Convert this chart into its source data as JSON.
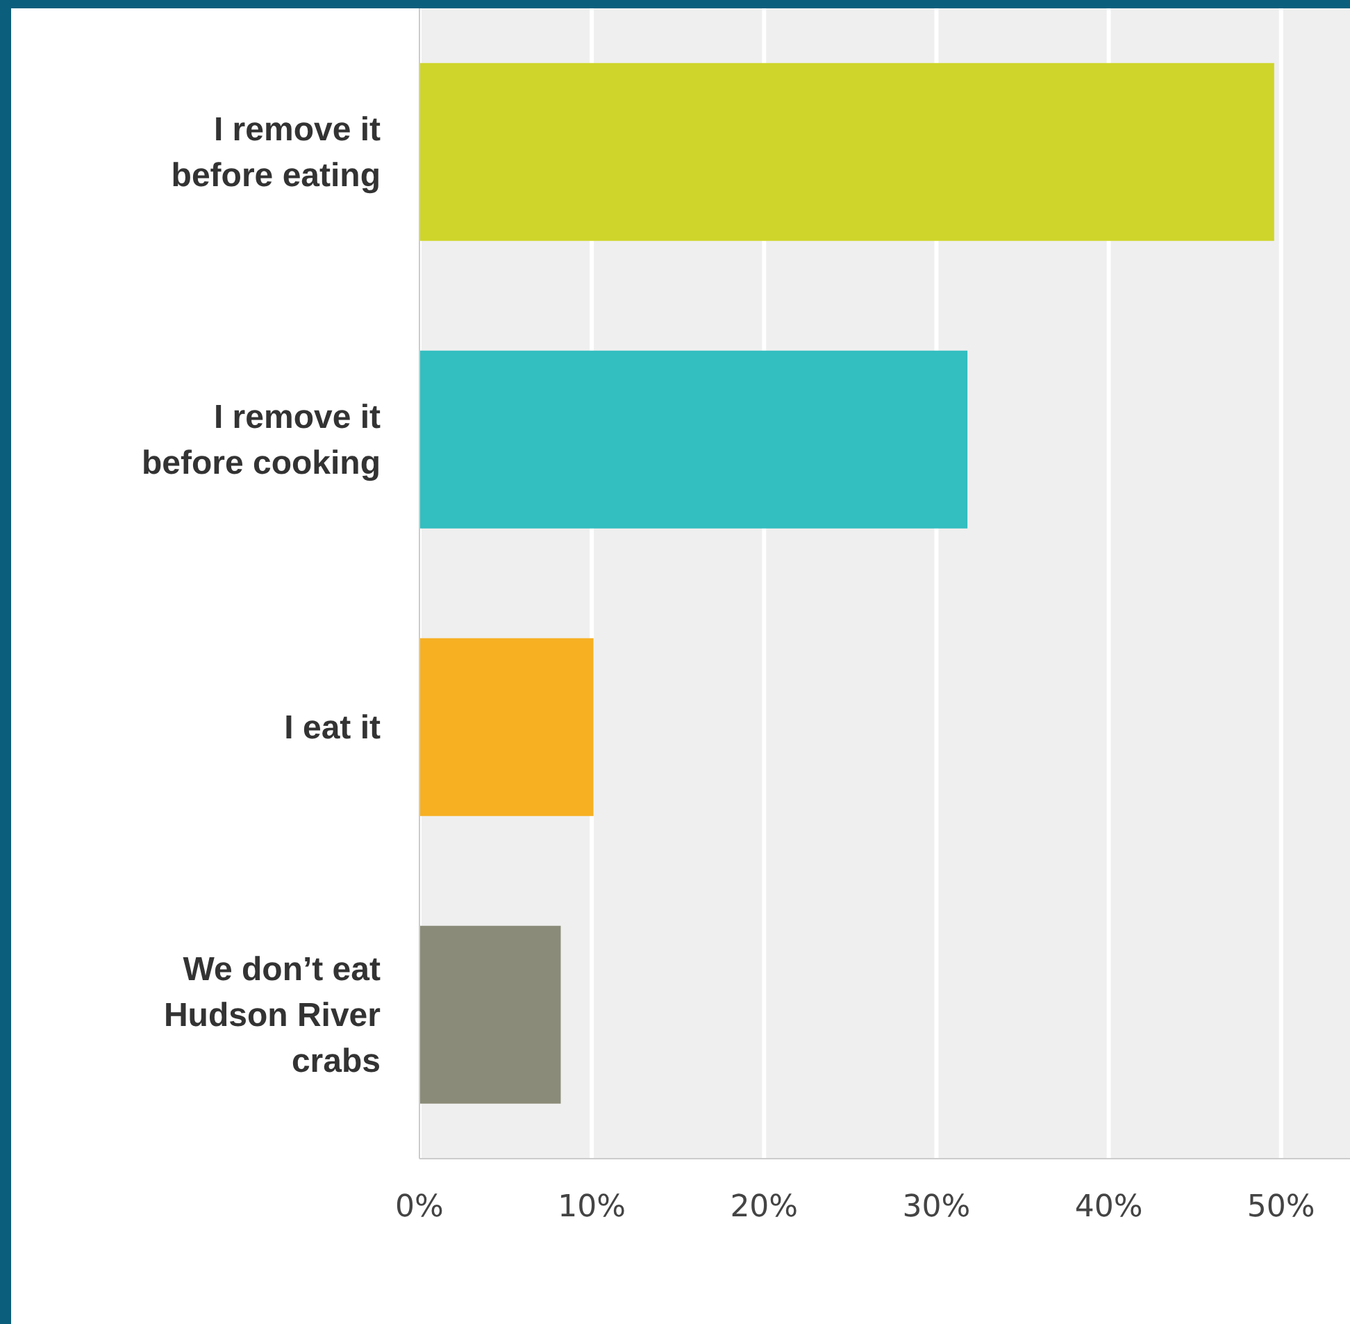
{
  "chart_data": {
    "type": "bar",
    "orientation": "horizontal",
    "categories": [
      "I remove it before eating",
      "I remove it before cooking",
      "I eat it",
      "We don’t eat Hudson River crabs"
    ],
    "values": [
      49.6,
      31.8,
      10.1,
      8.2
    ],
    "colors": [
      "#cfd52a",
      "#33bec0",
      "#f7b022",
      "#8b8b79"
    ],
    "xlim": [
      0,
      54
    ],
    "xticks": [
      {
        "value": 0,
        "label": "0%"
      },
      {
        "value": 10,
        "label": "10%"
      },
      {
        "value": 20,
        "label": "20%"
      },
      {
        "value": 30,
        "label": "30%"
      },
      {
        "value": 40,
        "label": "40%"
      },
      {
        "value": 50,
        "label": "50%"
      }
    ],
    "grid": "x"
  }
}
